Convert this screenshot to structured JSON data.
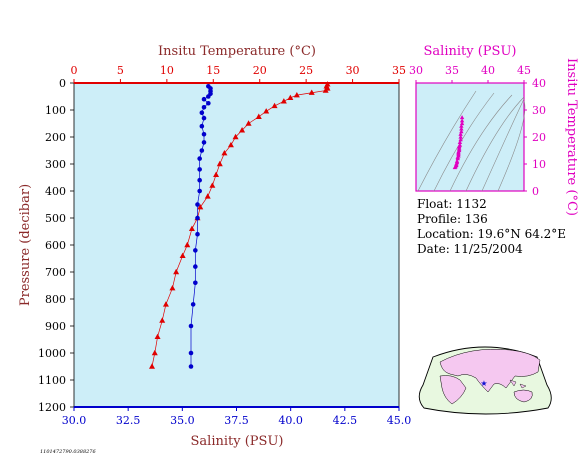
{
  "colors": {
    "temperature": "#e00000",
    "salinity": "#0000cc",
    "inset": "#e000c0",
    "plot_bg": "#cdeef8",
    "label_dark": "#8b2a2a"
  },
  "chart_data": [
    {
      "type": "line",
      "title": "",
      "ylabel": "Pressure (decibar)",
      "ylim": [
        0,
        1200
      ],
      "y_inverted": true,
      "yticks": [
        "0",
        "100",
        "200",
        "300",
        "400",
        "500",
        "600",
        "700",
        "800",
        "900",
        "1000",
        "1100",
        "1200"
      ],
      "grid": false,
      "axes": {
        "top": {
          "label": "Insitu Temperature (°C)",
          "range": [
            0,
            35
          ],
          "ticks": [
            "0",
            "5",
            "10",
            "15",
            "20",
            "25",
            "30",
            "35"
          ]
        },
        "bottom": {
          "label": "Salinity (PSU)",
          "range": [
            30.0,
            45.0
          ],
          "ticks": [
            "30.0",
            "32.5",
            "35.0",
            "37.5",
            "40.0",
            "42.5",
            "45.0"
          ]
        }
      },
      "series": [
        {
          "axis": "top",
          "marker": "triangle",
          "color": "#e00000",
          "points": [
            [
              27.3,
              5
            ],
            [
              27.2,
              12
            ],
            [
              27.3,
              20
            ],
            [
              27.1,
              28
            ],
            [
              25.6,
              36
            ],
            [
              24.0,
              45
            ],
            [
              23.3,
              55
            ],
            [
              22.6,
              68
            ],
            [
              21.6,
              85
            ],
            [
              20.7,
              105
            ],
            [
              19.9,
              125
            ],
            [
              18.8,
              150
            ],
            [
              18.1,
              175
            ],
            [
              17.4,
              200
            ],
            [
              16.9,
              230
            ],
            [
              16.2,
              260
            ],
            [
              15.7,
              300
            ],
            [
              15.3,
              340
            ],
            [
              14.9,
              380
            ],
            [
              14.4,
              420
            ],
            [
              13.6,
              460
            ],
            [
              13.3,
              500
            ],
            [
              12.7,
              540
            ],
            [
              12.2,
              600
            ],
            [
              11.7,
              640
            ],
            [
              11.0,
              700
            ],
            [
              10.6,
              760
            ],
            [
              9.9,
              820
            ],
            [
              9.5,
              880
            ],
            [
              9.0,
              940
            ],
            [
              8.7,
              1000
            ],
            [
              8.4,
              1050
            ]
          ]
        },
        {
          "axis": "bottom",
          "marker": "circle",
          "color": "#0000cc",
          "points": [
            [
              36.2,
              12
            ],
            [
              36.3,
              20
            ],
            [
              36.3,
              30
            ],
            [
              36.3,
              40
            ],
            [
              36.2,
              50
            ],
            [
              36.0,
              60
            ],
            [
              36.2,
              75
            ],
            [
              36.0,
              90
            ],
            [
              35.9,
              110
            ],
            [
              36.0,
              130
            ],
            [
              35.9,
              160
            ],
            [
              36.0,
              190
            ],
            [
              36.0,
              220
            ],
            [
              35.9,
              250
            ],
            [
              35.8,
              280
            ],
            [
              35.8,
              320
            ],
            [
              35.8,
              360
            ],
            [
              35.8,
              400
            ],
            [
              35.7,
              450
            ],
            [
              35.7,
              500
            ],
            [
              35.7,
              560
            ],
            [
              35.6,
              620
            ],
            [
              35.6,
              680
            ],
            [
              35.6,
              740
            ],
            [
              35.5,
              820
            ],
            [
              35.4,
              900
            ],
            [
              35.4,
              1000
            ],
            [
              35.4,
              1050
            ]
          ]
        }
      ]
    },
    {
      "type": "scatter",
      "title": "",
      "xlabel": "Salinity (PSU)",
      "ylabel": "Insitu Temperature (°C)",
      "xlim": [
        30,
        45
      ],
      "ylim": [
        0,
        40
      ],
      "xticks": [
        "30",
        "35",
        "40",
        "45"
      ],
      "yticks": [
        "0",
        "10",
        "20",
        "30",
        "40"
      ],
      "color": "#e000c0",
      "points": [
        [
          36.4,
          27.2
        ],
        [
          36.4,
          26.0
        ],
        [
          36.4,
          25.0
        ],
        [
          36.3,
          24.0
        ],
        [
          36.3,
          23.0
        ],
        [
          36.3,
          22.0
        ],
        [
          36.2,
          21.0
        ],
        [
          36.2,
          20.0
        ],
        [
          36.2,
          19.0
        ],
        [
          36.1,
          18.0
        ],
        [
          36.1,
          17.0
        ],
        [
          36.0,
          16.5
        ],
        [
          36.0,
          16.0
        ],
        [
          36.0,
          15.5
        ],
        [
          36.0,
          15.0
        ],
        [
          35.9,
          14.5
        ],
        [
          35.9,
          14.0
        ],
        [
          35.9,
          13.5
        ],
        [
          35.9,
          13.0
        ],
        [
          35.8,
          12.5
        ],
        [
          35.8,
          12.0
        ],
        [
          35.7,
          11.0
        ],
        [
          35.7,
          10.5
        ],
        [
          35.6,
          10.0
        ],
        [
          35.6,
          9.5
        ],
        [
          35.5,
          9.0
        ],
        [
          35.4,
          8.7
        ]
      ]
    }
  ],
  "info": {
    "float": "Float:  1132",
    "profile": "Profile:  136",
    "location": "Location:  19.6°N  64.2°E",
    "date": "Date:  11/25/2004"
  },
  "footer_code": "1101472790.0388276",
  "map": {
    "marker_symbol": "★"
  }
}
